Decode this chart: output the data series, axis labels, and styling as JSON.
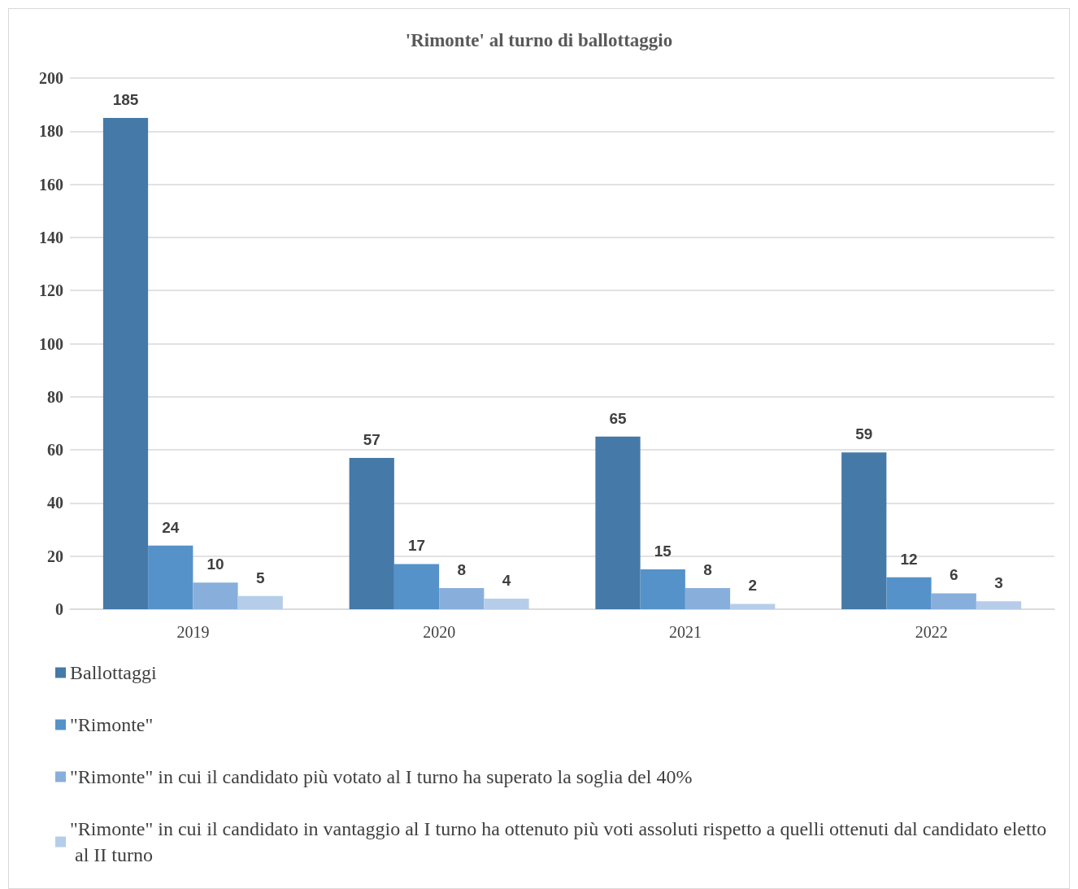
{
  "chart_data": {
    "type": "bar",
    "title": "'Rimonte' al turno di ballottaggio",
    "categories": [
      "2019",
      "2020",
      "2021",
      "2022"
    ],
    "series": [
      {
        "name": "Ballottaggi",
        "color": "#4579a8",
        "values": [
          185,
          57,
          65,
          59
        ]
      },
      {
        "name": "\"Rimonte\"",
        "color": "#5592c9",
        "values": [
          24,
          17,
          15,
          12
        ]
      },
      {
        "name": "\"Rimonte\" in cui il candidato più votato al I turno ha superato la soglia del 40%",
        "color": "#88afdc",
        "values": [
          10,
          8,
          8,
          6
        ]
      },
      {
        "name": "\"Rimonte\" in cui il candidato in vantaggio al I turno ha ottenuto più voti assoluti rispetto a quelli ottenuti dal candidato eletto al II turno",
        "color": "#b5cde9",
        "values": [
          5,
          4,
          2,
          3
        ]
      }
    ],
    "ylim": [
      0,
      200
    ],
    "yticks": [
      0,
      20,
      40,
      60,
      80,
      100,
      120,
      140,
      160,
      180,
      200
    ],
    "grid": "y",
    "legend": "bottom",
    "data_labels": true
  }
}
